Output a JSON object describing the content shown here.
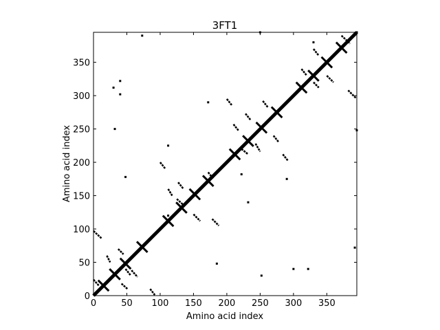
{
  "chart_data": {
    "type": "heatmap",
    "title": "3FT1",
    "xlabel": "Amino acid index",
    "ylabel": "Amino acid index",
    "xlim": [
      0,
      395
    ],
    "ylim": [
      0,
      395
    ],
    "x_ticks": [
      0,
      50,
      100,
      150,
      200,
      250,
      300,
      350
    ],
    "y_ticks": [
      0,
      50,
      100,
      150,
      200,
      250,
      300,
      350
    ],
    "x_tick_labels": [
      "0",
      "50",
      "100",
      "150",
      "200",
      "250",
      "300",
      "350"
    ],
    "y_tick_labels": [
      "0",
      "50",
      "100",
      "150",
      "200",
      "250",
      "300",
      "350"
    ],
    "colormap": "binary: black = contact, white = no contact",
    "grid": false,
    "legend": "none",
    "colors": {
      "contact": "#000000",
      "background": "#ffffff"
    },
    "diagonal": {
      "from": 0,
      "to": 395
    },
    "helix_crosses_at": [
      15,
      32,
      48,
      73,
      112,
      132,
      152,
      172,
      212,
      232,
      252,
      275,
      312,
      330,
      350,
      372
    ],
    "contact_segments": [
      {
        "x": [
          0,
          12
        ],
        "y": [
          97,
          86
        ]
      },
      {
        "x": [
          20,
          25
        ],
        "y": [
          60,
          50
        ]
      },
      {
        "x": [
          37,
          45
        ],
        "y": [
          70,
          62
        ]
      },
      {
        "x": [
          48,
          56
        ],
        "y": [
          40,
          30
        ]
      },
      {
        "x": [
          57,
          66
        ],
        "y": [
          38,
          28
        ]
      },
      {
        "x": [
          42,
          51
        ],
        "y": [
          18,
          10
        ]
      },
      {
        "x": [
          85,
          92
        ],
        "y": [
          10,
          1
        ]
      },
      {
        "x": [
          0,
          8
        ],
        "y": [
          24,
          15
        ]
      },
      {
        "x": [
          100,
          108
        ],
        "y": [
          200,
          190
        ]
      },
      {
        "x": [
          112,
          118
        ],
        "y": [
          160,
          150
        ]
      },
      {
        "x": [
          127,
          135
        ],
        "y": [
          170,
          160
        ]
      },
      {
        "x": [
          125,
          136
        ],
        "y": [
          145,
          135
        ]
      },
      {
        "x": [
          150,
          160
        ],
        "y": [
          122,
          112
        ]
      },
      {
        "x": [
          178,
          188
        ],
        "y": [
          115,
          105
        ]
      },
      {
        "x": [
          172,
          180
        ],
        "y": [
          185,
          175
        ]
      },
      {
        "x": [
          200,
          208
        ],
        "y": [
          295,
          285
        ]
      },
      {
        "x": [
          210,
          218
        ],
        "y": [
          257,
          247
        ]
      },
      {
        "x": [
          228,
          236
        ],
        "y": [
          273,
          263
        ]
      },
      {
        "x": [
          222,
          232
        ],
        "y": [
          220,
          212
        ]
      },
      {
        "x": [
          243,
          250
        ],
        "y": [
          228,
          216
        ]
      },
      {
        "x": [
          254,
          262
        ],
        "y": [
          292,
          282
        ]
      },
      {
        "x": [
          270,
          278
        ],
        "y": [
          240,
          230
        ]
      },
      {
        "x": [
          284,
          292
        ],
        "y": [
          212,
          202
        ]
      },
      {
        "x": [
          312,
          320
        ],
        "y": [
          340,
          330
        ]
      },
      {
        "x": [
          330,
          338
        ],
        "y": [
          370,
          360
        ]
      },
      {
        "x": [
          330,
          338
        ],
        "y": [
          320,
          312
        ]
      },
      {
        "x": [
          350,
          360
        ],
        "y": [
          330,
          320
        ]
      },
      {
        "x": [
          372,
          385
        ],
        "y": [
          390,
          378
        ]
      },
      {
        "x": [
          382,
          394
        ],
        "y": [
          308,
          296
        ]
      }
    ],
    "contact_dots": [
      [
        73,
        390
      ],
      [
        40,
        322
      ],
      [
        40,
        302
      ],
      [
        32,
        250
      ],
      [
        48,
        178
      ],
      [
        112,
        225
      ],
      [
        172,
        290
      ],
      [
        185,
        48
      ],
      [
        222,
        182
      ],
      [
        252,
        30
      ],
      [
        290,
        175
      ],
      [
        300,
        40
      ],
      [
        322,
        40
      ],
      [
        330,
        380
      ],
      [
        392,
        72
      ],
      [
        395,
        248
      ],
      [
        395,
        395
      ],
      [
        250,
        395
      ],
      [
        30,
        312
      ],
      [
        232,
        140
      ],
      [
        112,
        120
      ]
    ]
  }
}
